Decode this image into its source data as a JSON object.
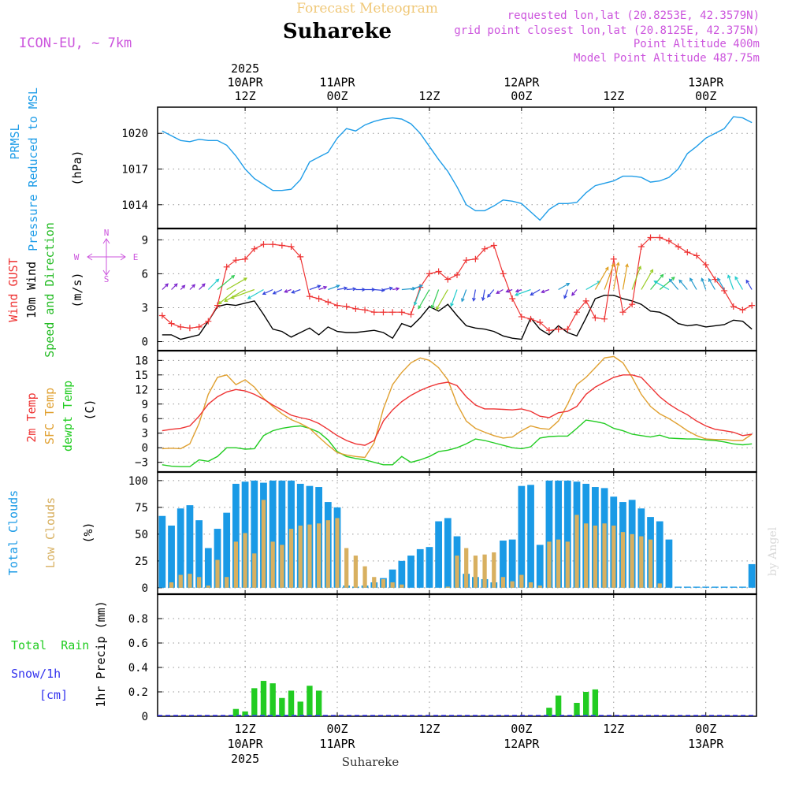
{
  "header": {
    "model": "ICON-EU, ~ 7km",
    "subtitle": "Forecast Meteogram",
    "location": "Suhareke",
    "requested": "requested lon,lat (20.8253E, 42.3579N)",
    "grid": "grid point closest lon,lat (20.8125E, 42.375N)",
    "point_alt": "Point Altitude 400m",
    "model_alt": "Model Point Altitude 487.75m",
    "credit": "by Angel",
    "footer": "Suhareke"
  },
  "colors": {
    "pressure": "#1f9de8",
    "gust": "#ee3333",
    "wind": "#000000",
    "direction": "#22bb22",
    "temp": "#ee3333",
    "sfc": "#e0a030",
    "dewpt": "#22cc22",
    "total_cloud": "#1a9ae6",
    "low_cloud": "#d8b060",
    "rain": "#22cc22",
    "snow": "#3333ee",
    "header": "#cc55dd",
    "subtitle": "#f0c878"
  },
  "chart_data": [
    {
      "type": "line",
      "name": "pressure-panel",
      "ylabel_lines": [
        "PRMSL",
        "Pressure Reduced to MSL"
      ],
      "unit": "(hPa)",
      "x": [
        1,
        3,
        5,
        7,
        9,
        11,
        13,
        15,
        17,
        19,
        21,
        23,
        25,
        27,
        29,
        31,
        33,
        35,
        37,
        39,
        41,
        43,
        45,
        47,
        49,
        51,
        53,
        55,
        57,
        59,
        61,
        63,
        65,
        67,
        69,
        71,
        73,
        75,
        77,
        79,
        81,
        83,
        85,
        87,
        89,
        91,
        93,
        95,
        97,
        99,
        101,
        103,
        105,
        107,
        109,
        111,
        113,
        115,
        117,
        119,
        121,
        123,
        125,
        127,
        129
      ],
      "values": [
        1020.2,
        1019.8,
        1019.4,
        1019.3,
        1019.5,
        1019.4,
        1019.4,
        1019.0,
        1018.1,
        1017.0,
        1016.2,
        1015.7,
        1015.2,
        1015.2,
        1015.3,
        1016.1,
        1017.6,
        1018.0,
        1018.4,
        1019.6,
        1020.4,
        1020.2,
        1020.7,
        1021.0,
        1021.2,
        1021.3,
        1021.2,
        1020.8,
        1020.0,
        1018.9,
        1017.8,
        1016.8,
        1015.5,
        1014.0,
        1013.5,
        1013.5,
        1013.9,
        1014.4,
        1014.3,
        1014.1,
        1013.4,
        1012.7,
        1013.6,
        1014.1,
        1014.1,
        1014.2,
        1015.0,
        1015.6,
        1015.8,
        1016.0,
        1016.4,
        1016.4,
        1016.3,
        1015.9,
        1016.0,
        1016.3,
        1017.0,
        1018.3,
        1018.9,
        1019.6,
        1020.0,
        1020.4,
        1021.4,
        1021.3,
        1020.9
      ],
      "yticks": [
        1014,
        1017,
        1020
      ],
      "ylim": [
        1012,
        1022.2
      ]
    },
    {
      "type": "line",
      "name": "wind-panel",
      "ylabel_lines": [
        "Wind GUST",
        "10m Wind",
        "Speed and Direction"
      ],
      "unit": "(m/s)",
      "compass": {
        "n": "N",
        "s": "S",
        "w": "W",
        "e": "E"
      },
      "gust_x": [
        1,
        3,
        5,
        7,
        9,
        11,
        13,
        15,
        17,
        19,
        21,
        23,
        25,
        27,
        29,
        31,
        33,
        35,
        37,
        39,
        41,
        43,
        45,
        47,
        49,
        51,
        53,
        55,
        57,
        59,
        61,
        63,
        65,
        67,
        69,
        71,
        73,
        75,
        77,
        79,
        81,
        83,
        85,
        87,
        89,
        91,
        93,
        95,
        97,
        99,
        101,
        103,
        105,
        107,
        109,
        111,
        113,
        115,
        117,
        119,
        121,
        123,
        125,
        127,
        129
      ],
      "gust": [
        2.3,
        1.6,
        1.3,
        1.2,
        1.3,
        1.8,
        3.2,
        6.6,
        7.2,
        7.3,
        8.2,
        8.6,
        8.6,
        8.5,
        8.4,
        7.5,
        4.0,
        3.8,
        3.5,
        3.2,
        3.1,
        2.9,
        2.8,
        2.6,
        2.6,
        2.6,
        2.6,
        2.4,
        4.8,
        6.0,
        6.2,
        5.5,
        5.9,
        7.2,
        7.3,
        8.2,
        8.5,
        6.0,
        3.8,
        2.2,
        2.0,
        1.7,
        1.0,
        1.1,
        1.1,
        2.6,
        3.6,
        2.1,
        2.0,
        7.3,
        2.6,
        3.3,
        8.4,
        9.2,
        9.2,
        8.9,
        8.4,
        7.9,
        7.6,
        6.8,
        5.5,
        4.5,
        3.1,
        2.8,
        3.2
      ],
      "wind_x": [
        1,
        3,
        5,
        7,
        9,
        11,
        13,
        15,
        17,
        19,
        21,
        23,
        25,
        27,
        29,
        31,
        33,
        35,
        37,
        39,
        41,
        43,
        45,
        47,
        49,
        51,
        53,
        55,
        57,
        59,
        61,
        63,
        65,
        67,
        69,
        71,
        73,
        75,
        77,
        79,
        81,
        83,
        85,
        87,
        89,
        91,
        93,
        95,
        97,
        99,
        101,
        103,
        105,
        107,
        109,
        111,
        113,
        115,
        117,
        119,
        121,
        123,
        125,
        127,
        129
      ],
      "wind": [
        0.6,
        0.6,
        0.2,
        0.4,
        0.6,
        1.8,
        3.1,
        3.3,
        3.2,
        3.4,
        3.6,
        2.4,
        1.1,
        0.9,
        0.4,
        0.8,
        1.2,
        0.6,
        1.3,
        0.9,
        0.8,
        0.8,
        0.9,
        1.0,
        0.8,
        0.3,
        1.6,
        1.3,
        2.1,
        3.1,
        2.7,
        3.3,
        2.3,
        1.4,
        1.2,
        1.1,
        0.9,
        0.5,
        0.3,
        0.2,
        2.1,
        1.1,
        0.6,
        1.4,
        0.8,
        0.5,
        2.1,
        3.8,
        4.1,
        4.1,
        3.8,
        3.6,
        3.3,
        2.7,
        2.6,
        2.2,
        1.6,
        1.4,
        1.5,
        1.3,
        1.4,
        1.5,
        1.9,
        1.8,
        1.1
      ],
      "arrows_x": [
        1,
        3,
        5,
        7,
        9,
        11,
        13,
        15,
        17,
        19,
        21,
        23,
        25,
        27,
        29,
        31,
        33,
        35,
        37,
        39,
        41,
        43,
        45,
        47,
        49,
        51,
        53,
        55,
        57,
        59,
        61,
        63,
        65,
        67,
        69,
        71,
        73,
        75,
        77,
        79,
        81,
        83,
        85,
        87,
        89,
        91,
        93,
        95,
        97,
        99,
        101,
        103,
        105,
        107,
        109,
        111,
        113,
        115,
        117,
        119,
        121,
        123,
        125,
        127,
        129
      ],
      "arrows_dir": [
        45,
        45,
        45,
        45,
        45,
        45,
        50,
        60,
        230,
        240,
        250,
        240,
        245,
        245,
        250,
        250,
        70,
        70,
        70,
        80,
        85,
        90,
        90,
        95,
        80,
        80,
        85,
        70,
        200,
        210,
        200,
        210,
        200,
        200,
        190,
        190,
        220,
        240,
        250,
        250,
        250,
        240,
        250,
        60,
        200,
        220,
        60,
        30,
        20,
        10,
        10,
        20,
        30,
        40,
        50,
        300,
        320,
        320,
        330,
        340,
        330,
        330,
        340,
        330,
        330
      ],
      "arrows_speed": [
        0.6,
        0.6,
        0.2,
        0.4,
        0.6,
        1.8,
        3.1,
        3.3,
        3.2,
        3.4,
        3.6,
        2.4,
        1.1,
        0.9,
        0.4,
        0.8,
        1.2,
        0.6,
        1.3,
        0.9,
        0.8,
        0.8,
        0.9,
        1.0,
        0.8,
        0.3,
        1.6,
        1.3,
        2.1,
        3.1,
        2.7,
        3.3,
        2.3,
        1.4,
        1.2,
        1.1,
        0.9,
        0.5,
        0.3,
        0.2,
        2.1,
        1.1,
        0.6,
        1.4,
        0.8,
        0.5,
        2.1,
        3.8,
        4.1,
        4.1,
        3.8,
        3.6,
        3.3,
        2.7,
        2.6,
        2.2,
        1.6,
        1.4,
        1.5,
        1.3,
        1.4,
        1.5,
        1.9,
        1.8,
        1.1
      ],
      "yticks": [
        0,
        3,
        6,
        9
      ],
      "ylim": [
        -0.8,
        10
      ]
    },
    {
      "type": "line",
      "name": "temperature-panel",
      "ylabel_lines": [
        "2m Temp",
        "SFC Temp",
        "dewpt Temp"
      ],
      "unit": "(C)",
      "x": [
        1,
        3,
        5,
        7,
        9,
        11,
        13,
        15,
        17,
        19,
        21,
        23,
        25,
        27,
        29,
        31,
        33,
        35,
        37,
        39,
        41,
        43,
        45,
        47,
        49,
        51,
        53,
        55,
        57,
        59,
        61,
        63,
        65,
        67,
        69,
        71,
        73,
        75,
        77,
        79,
        81,
        83,
        85,
        87,
        89,
        91,
        93,
        95,
        97,
        99,
        101,
        103,
        105,
        107,
        109,
        111,
        113,
        115,
        117,
        119,
        121,
        123,
        125,
        127,
        129
      ],
      "t2m": [
        3.5,
        3.8,
        4.0,
        4.5,
        6.5,
        9.0,
        10.5,
        11.5,
        12.0,
        11.7,
        11.0,
        10.0,
        8.8,
        7.8,
        6.7,
        6.2,
        5.8,
        5.0,
        3.8,
        2.5,
        1.5,
        0.8,
        0.5,
        1.5,
        5.5,
        7.8,
        9.5,
        10.8,
        11.8,
        12.6,
        13.2,
        13.5,
        12.8,
        10.5,
        8.8,
        8.0,
        8.0,
        7.9,
        7.8,
        8.0,
        7.5,
        6.5,
        6.2,
        7.2,
        7.5,
        8.5,
        11.0,
        12.5,
        13.5,
        14.5,
        15.0,
        15.0,
        14.5,
        12.5,
        10.5,
        9.0,
        7.8,
        6.8,
        5.5,
        4.5,
        3.8,
        3.5,
        3.2,
        2.5,
        2.8
      ],
      "sfc": [
        -0.2,
        -0.1,
        -0.2,
        0.8,
        5.0,
        11.0,
        14.5,
        15.0,
        13.0,
        14.0,
        12.5,
        10.2,
        8.5,
        7.0,
        5.8,
        5.0,
        4.0,
        2.2,
        0.5,
        -1.0,
        -1.5,
        -1.8,
        -2.0,
        1.0,
        8.0,
        13.0,
        15.5,
        17.5,
        18.5,
        18.0,
        16.5,
        14.0,
        9.0,
        5.5,
        4.0,
        3.2,
        2.5,
        2.0,
        2.2,
        3.5,
        4.5,
        4.0,
        3.8,
        5.5,
        9.0,
        13.0,
        14.5,
        16.5,
        18.5,
        18.8,
        17.5,
        14.5,
        11.0,
        8.5,
        7.0,
        6.0,
        4.8,
        3.5,
        2.5,
        1.8,
        1.7,
        1.7,
        1.5,
        1.5,
        2.8
      ],
      "dewpt": [
        -3.5,
        -3.8,
        -3.9,
        -3.9,
        -2.5,
        -2.8,
        -1.8,
        0.0,
        0.0,
        -0.3,
        -0.2,
        2.5,
        3.5,
        4.0,
        4.3,
        4.5,
        4.0,
        3.2,
        1.6,
        -0.8,
        -1.8,
        -2.2,
        -2.5,
        -3.0,
        -3.5,
        -3.5,
        -1.8,
        -3.0,
        -2.5,
        -1.8,
        -0.8,
        -0.5,
        0.0,
        0.8,
        1.8,
        1.5,
        1.0,
        0.5,
        0.0,
        -0.2,
        0.2,
        2.0,
        2.3,
        2.4,
        2.4,
        4.0,
        5.7,
        5.4,
        5.0,
        4.0,
        3.5,
        2.8,
        2.5,
        2.2,
        2.6,
        2.0,
        1.9,
        1.8,
        1.8,
        1.6,
        1.5,
        1.2,
        0.8,
        0.6,
        0.8
      ],
      "yticks": [
        -3,
        0,
        3,
        6,
        9,
        12,
        15,
        18
      ],
      "ylim": [
        -5,
        20
      ]
    },
    {
      "type": "bar",
      "name": "cloud-panel",
      "ylabel_lines": [
        "Total Clouds",
        "Low Clouds"
      ],
      "unit": "(%)",
      "x": [
        1,
        3,
        5,
        7,
        9,
        11,
        13,
        15,
        17,
        19,
        21,
        23,
        25,
        27,
        29,
        31,
        33,
        35,
        37,
        39,
        41,
        43,
        45,
        47,
        49,
        51,
        53,
        55,
        57,
        59,
        61,
        63,
        65,
        67,
        69,
        71,
        73,
        75,
        77,
        79,
        81,
        83,
        85,
        87,
        89,
        91,
        93,
        95,
        97,
        99,
        101,
        103,
        105,
        107,
        109,
        111,
        113,
        115,
        117,
        119,
        121,
        123,
        125,
        127,
        129
      ],
      "total": [
        67,
        58,
        74,
        77,
        63,
        37,
        55,
        70,
        97,
        99,
        100,
        98,
        100,
        100,
        100,
        97,
        95,
        94,
        80,
        75,
        2,
        1,
        2,
        5,
        9,
        17,
        25,
        30,
        36,
        38,
        62,
        65,
        48,
        13,
        10,
        8,
        5,
        44,
        45,
        95,
        96,
        40,
        100,
        100,
        100,
        99,
        97,
        94,
        93,
        85,
        80,
        82,
        74,
        66,
        62,
        45,
        1,
        1,
        1,
        1,
        1,
        1,
        1,
        1,
        22
      ],
      "low": [
        0,
        5,
        12,
        13,
        10,
        2,
        26,
        10,
        43,
        51,
        32,
        82,
        43,
        40,
        55,
        58,
        59,
        60,
        63,
        65,
        37,
        30,
        20,
        10,
        8,
        5,
        3,
        0,
        0,
        0,
        0,
        1,
        30,
        37,
        30,
        31,
        33,
        10,
        6,
        12,
        5,
        2,
        43,
        45,
        43,
        68,
        60,
        58,
        60,
        58,
        52,
        50,
        48,
        45,
        4,
        0,
        0,
        0,
        0,
        0,
        0,
        0,
        0,
        0,
        0
      ],
      "yticks": [
        0,
        25,
        50,
        75,
        100
      ],
      "ylim": [
        -6,
        108
      ]
    },
    {
      "type": "bar",
      "name": "precip-panel",
      "ylabel_lines": [
        "1hr Precip (mm)"
      ],
      "legend_total_rain": "Total  Rain",
      "legend_snow": "Snow/1h",
      "legend_snow_unit": "[cm]",
      "x": [
        1,
        3,
        5,
        7,
        9,
        11,
        13,
        15,
        17,
        19,
        21,
        23,
        25,
        27,
        29,
        31,
        33,
        35,
        37,
        39,
        41,
        43,
        45,
        47,
        49,
        51,
        53,
        55,
        57,
        59,
        61,
        63,
        65,
        67,
        69,
        71,
        73,
        75,
        77,
        79,
        81,
        83,
        85,
        87,
        89,
        91,
        93,
        95,
        97,
        99,
        101,
        103,
        105,
        107,
        109,
        111,
        113,
        115,
        117,
        119,
        121,
        123,
        125,
        127,
        129
      ],
      "rain": [
        0,
        0,
        0,
        0,
        0,
        0,
        0,
        0,
        0.06,
        0.04,
        0.23,
        0.29,
        0.27,
        0.15,
        0.21,
        0.12,
        0.25,
        0.21,
        0,
        0,
        0,
        0,
        0,
        0,
        0,
        0,
        0,
        0,
        0,
        0,
        0,
        0,
        0,
        0,
        0,
        0,
        0,
        0,
        0,
        0,
        0,
        0,
        0.07,
        0.17,
        0,
        0.11,
        0.2,
        0.22,
        0,
        0,
        0,
        0,
        0,
        0,
        0,
        0,
        0,
        0,
        0,
        0,
        0,
        0,
        0,
        0,
        0
      ],
      "snow": [
        0,
        0,
        0,
        0,
        0,
        0,
        0,
        0,
        0,
        0,
        0,
        0,
        0,
        0,
        0,
        0,
        0,
        0,
        0,
        0,
        0,
        0,
        0,
        0,
        0,
        0,
        0,
        0,
        0,
        0,
        0,
        0,
        0,
        0,
        0,
        0,
        0,
        0,
        0,
        0,
        0,
        0,
        0,
        0,
        0,
        0,
        0,
        0,
        0,
        0,
        0,
        0,
        0,
        0,
        0,
        0,
        0,
        0,
        0,
        0,
        0,
        0,
        0,
        0,
        0
      ],
      "yticks": [
        0,
        0.2,
        0.4,
        0.6,
        0.8
      ],
      "ylim": [
        0,
        1
      ]
    }
  ],
  "time_axis": {
    "xlim": [
      0,
      130
    ],
    "ticks": [
      {
        "x": 19,
        "top": [
          "2025",
          "10APR",
          "12Z"
        ],
        "bottom": [
          "12Z",
          "10APR",
          "2025"
        ]
      },
      {
        "x": 39,
        "top": [
          "11APR",
          "00Z"
        ],
        "bottom": [
          "00Z",
          "11APR"
        ]
      },
      {
        "x": 59,
        "top": [
          "12Z"
        ],
        "bottom": [
          "12Z"
        ]
      },
      {
        "x": 79,
        "top": [
          "12APR",
          "00Z"
        ],
        "bottom": [
          "00Z",
          "12APR"
        ]
      },
      {
        "x": 99,
        "top": [
          "12Z"
        ],
        "bottom": [
          "12Z"
        ]
      },
      {
        "x": 119,
        "top": [
          "13APR",
          "00Z"
        ],
        "bottom": [
          "00Z",
          "13APR"
        ]
      }
    ]
  }
}
